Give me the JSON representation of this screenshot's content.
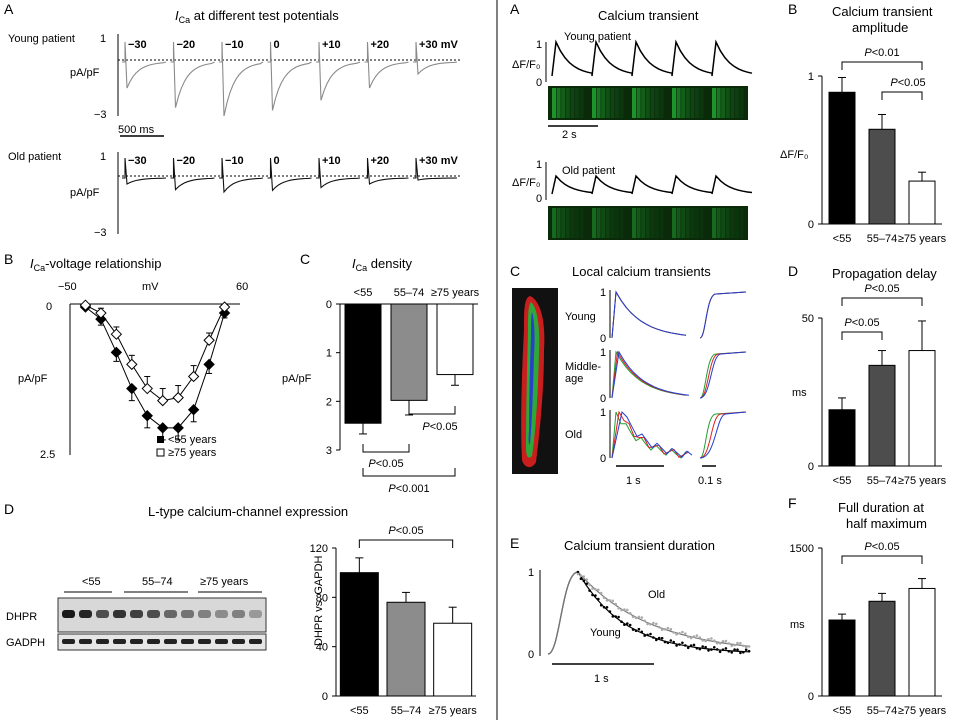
{
  "left": {
    "A": {
      "panel_label": "A",
      "title_main": "I",
      "title_sub": "Ca",
      "title_rest": " at different test potentials",
      "young_label": "Young patient",
      "old_label": "Old patient",
      "y_top": "1",
      "y_bottom": "−3",
      "y_unit": "pA/pF",
      "scale_bar": "500 ms",
      "potentials": [
        "−30",
        "−20",
        "−10",
        "0",
        "+10",
        "+20",
        "+30 mV"
      ]
    },
    "B": {
      "panel_label": "B",
      "title_main": "I",
      "title_sub": "Ca",
      "title_rest": "-voltage relationship",
      "xlabel": "mV",
      "ylabel": "pA/pF",
      "x_min_label": "−50",
      "x_max_label": "60",
      "y_top_label": "0",
      "y_bottom_label": "2.5",
      "legend_young": "<55 years",
      "legend_old": "≥75 years"
    },
    "C": {
      "panel_label": "C",
      "title_main": "I",
      "title_sub": "Ca",
      "title_rest": " density",
      "ylabel": "pA/pF",
      "categories": [
        "<55",
        "55–74",
        "≥75 years"
      ],
      "yticks": [
        "0",
        "1",
        "2",
        "3"
      ],
      "sig": [
        "P<0.05",
        "P<0.05",
        "P<0.001"
      ]
    },
    "D": {
      "panel_label": "D",
      "title": "L-type calcium-channel expression",
      "groups": [
        "<55",
        "55–74",
        "≥75 years"
      ],
      "blot_rows": [
        "DHPR",
        "GADPH"
      ],
      "ylabel": "DHPR  vs. GAPDH",
      "categories": [
        "<55",
        "55–74",
        "≥75 years"
      ],
      "yticks": [
        "0",
        "40",
        "80",
        "120"
      ],
      "sig": "P<0.05"
    }
  },
  "right": {
    "A": {
      "panel_label": "A",
      "title": "Calcium transient",
      "young_label": "Young patient",
      "old_label": "Old patient",
      "y_axis": "ΔF/F₀",
      "y1": "1",
      "y0": "0",
      "scale_bar": "2 s"
    },
    "B": {
      "panel_label": "B",
      "title_line1": "Calcium transient",
      "title_line2": "amplitude",
      "ylabel": "ΔF/F₀",
      "yticks": [
        "0",
        "1"
      ],
      "categories": [
        "<55",
        "55–74",
        "≥75 years"
      ],
      "sig": [
        "P<0.01",
        "P<0.05"
      ]
    },
    "C": {
      "panel_label": "C",
      "title": "Local calcium transients",
      "rows": [
        "Young",
        "Middle-\nage",
        "Old"
      ],
      "row_labels": [
        "Young",
        "Middle-",
        "age",
        "Old"
      ],
      "y1": "1",
      "y0": "0",
      "scale1": "1 s",
      "scale2": "0.1 s"
    },
    "D": {
      "panel_label": "D",
      "title": "Propagation delay",
      "ylabel": "ms",
      "yticks": [
        "0",
        "50"
      ],
      "categories": [
        "<55",
        "55–74",
        "≥75 years"
      ],
      "sig": [
        "P<0.05",
        "P<0.05"
      ]
    },
    "E": {
      "panel_label": "E",
      "title": "Calcium transient duration",
      "y1": "1",
      "y0": "0",
      "old_label": "Old",
      "young_label": "Young",
      "scale_bar": "1 s"
    },
    "F": {
      "panel_label": "F",
      "title_line1": "Full duration at",
      "title_line2": "half maximum",
      "ylabel": "ms",
      "yticks": [
        "0",
        "1500"
      ],
      "categories": [
        "<55",
        "55–74",
        "≥75 years"
      ],
      "sig": "P<0.05"
    }
  },
  "colors": {
    "black": "#000000",
    "dark_gray": "#4d4d4d",
    "mid_gray": "#8c8c8c",
    "white": "#ffffff",
    "green": "#1f9e2f",
    "red": "#e02020",
    "blue": "#2040d0"
  },
  "chart_data": [
    {
      "id": "left-B",
      "type": "line",
      "title": "ICa-voltage relationship",
      "xlabel": "mV",
      "ylabel": "pA/pF",
      "xlim": [
        -50,
        60
      ],
      "ylim": [
        0,
        2.5
      ],
      "y_inverted": true,
      "legend": "bottom-right",
      "x": [
        -40,
        -30,
        -20,
        -10,
        0,
        10,
        20,
        30,
        40,
        50
      ],
      "series": [
        {
          "name": "<55 years",
          "marker": "filled-diamond",
          "values": [
            0.05,
            0.25,
            0.8,
            1.4,
            1.85,
            2.05,
            2.05,
            1.75,
            1.0,
            0.15
          ],
          "errors": [
            0.03,
            0.1,
            0.15,
            0.2,
            0.2,
            0.2,
            0.2,
            0.2,
            0.15,
            0.08
          ]
        },
        {
          "name": "≥75 years",
          "marker": "open-diamond",
          "values": [
            0.02,
            0.15,
            0.5,
            1.0,
            1.4,
            1.6,
            1.55,
            1.2,
            0.6,
            0.05
          ],
          "errors": [
            0.02,
            0.08,
            0.12,
            0.15,
            0.2,
            0.2,
            0.2,
            0.18,
            0.12,
            0.05
          ]
        }
      ]
    },
    {
      "id": "left-C",
      "type": "bar",
      "title": "ICa density",
      "ylabel": "pA/pF",
      "ylim": [
        0,
        3
      ],
      "y_inverted": true,
      "categories": [
        "<55",
        "55–74",
        "≥75 years"
      ],
      "values": [
        2.45,
        1.98,
        1.45
      ],
      "errors": [
        0.22,
        0.3,
        0.22
      ],
      "colors": [
        "#000000",
        "#8c8c8c",
        "#ffffff"
      ]
    },
    {
      "id": "left-D",
      "type": "bar",
      "ylabel": "DHPR vs. GAPDH",
      "ylim": [
        0,
        120
      ],
      "categories": [
        "<55",
        "55–74",
        "≥75 years"
      ],
      "values": [
        100,
        76,
        59
      ],
      "errors": [
        12,
        8,
        13
      ],
      "colors": [
        "#000000",
        "#8c8c8c",
        "#ffffff"
      ]
    },
    {
      "id": "right-B",
      "type": "bar",
      "title": "Calcium transient amplitude",
      "ylabel": "ΔF/F₀",
      "ylim": [
        0,
        1
      ],
      "categories": [
        "<55",
        "55–74",
        "≥75 years"
      ],
      "values": [
        0.89,
        0.64,
        0.29
      ],
      "errors": [
        0.1,
        0.1,
        0.06
      ],
      "colors": [
        "#000000",
        "#4d4d4d",
        "#ffffff"
      ]
    },
    {
      "id": "right-D",
      "type": "bar",
      "title": "Propagation delay",
      "ylabel": "ms",
      "ylim": [
        0,
        50
      ],
      "categories": [
        "<55",
        "55–74",
        "≥75 years"
      ],
      "values": [
        19,
        34,
        39
      ],
      "errors": [
        4,
        5,
        10
      ],
      "colors": [
        "#000000",
        "#4d4d4d",
        "#ffffff"
      ]
    },
    {
      "id": "right-F",
      "type": "bar",
      "title": "Full duration at half maximum",
      "ylabel": "ms",
      "ylim": [
        0,
        1500
      ],
      "categories": [
        "<55",
        "55–74",
        "≥75 years"
      ],
      "values": [
        770,
        960,
        1090
      ],
      "errors": [
        60,
        80,
        100
      ],
      "colors": [
        "#000000",
        "#4d4d4d",
        "#ffffff"
      ]
    }
  ]
}
